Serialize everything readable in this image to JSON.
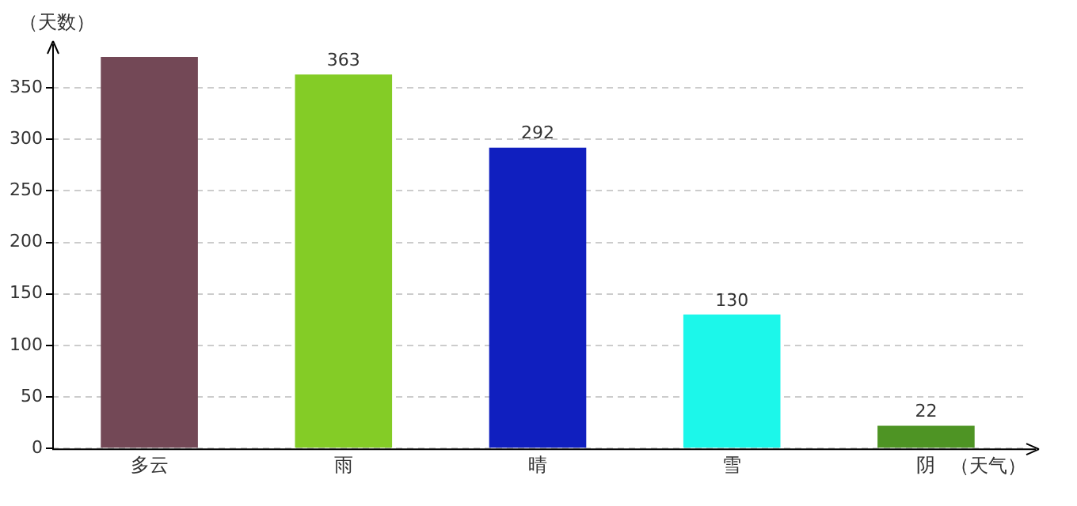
{
  "chart_data": {
    "type": "bar",
    "xlabel": "（天气）",
    "ylabel": "（天数）",
    "categories": [
      "多云",
      "雨",
      "晴",
      "雪",
      "阴"
    ],
    "values": [
      380,
      363,
      292,
      130,
      22
    ],
    "colors": [
      "#734856",
      "#84cc26",
      "#101fbf",
      "#1cf7ea",
      "#4e9424"
    ],
    "value_labels": [
      null,
      "363",
      "292",
      "130",
      "22"
    ],
    "ylim": [
      0,
      380
    ],
    "yticks": [
      0,
      50,
      100,
      150,
      200,
      250,
      300,
      350
    ],
    "grid": "y",
    "legend": false
  }
}
